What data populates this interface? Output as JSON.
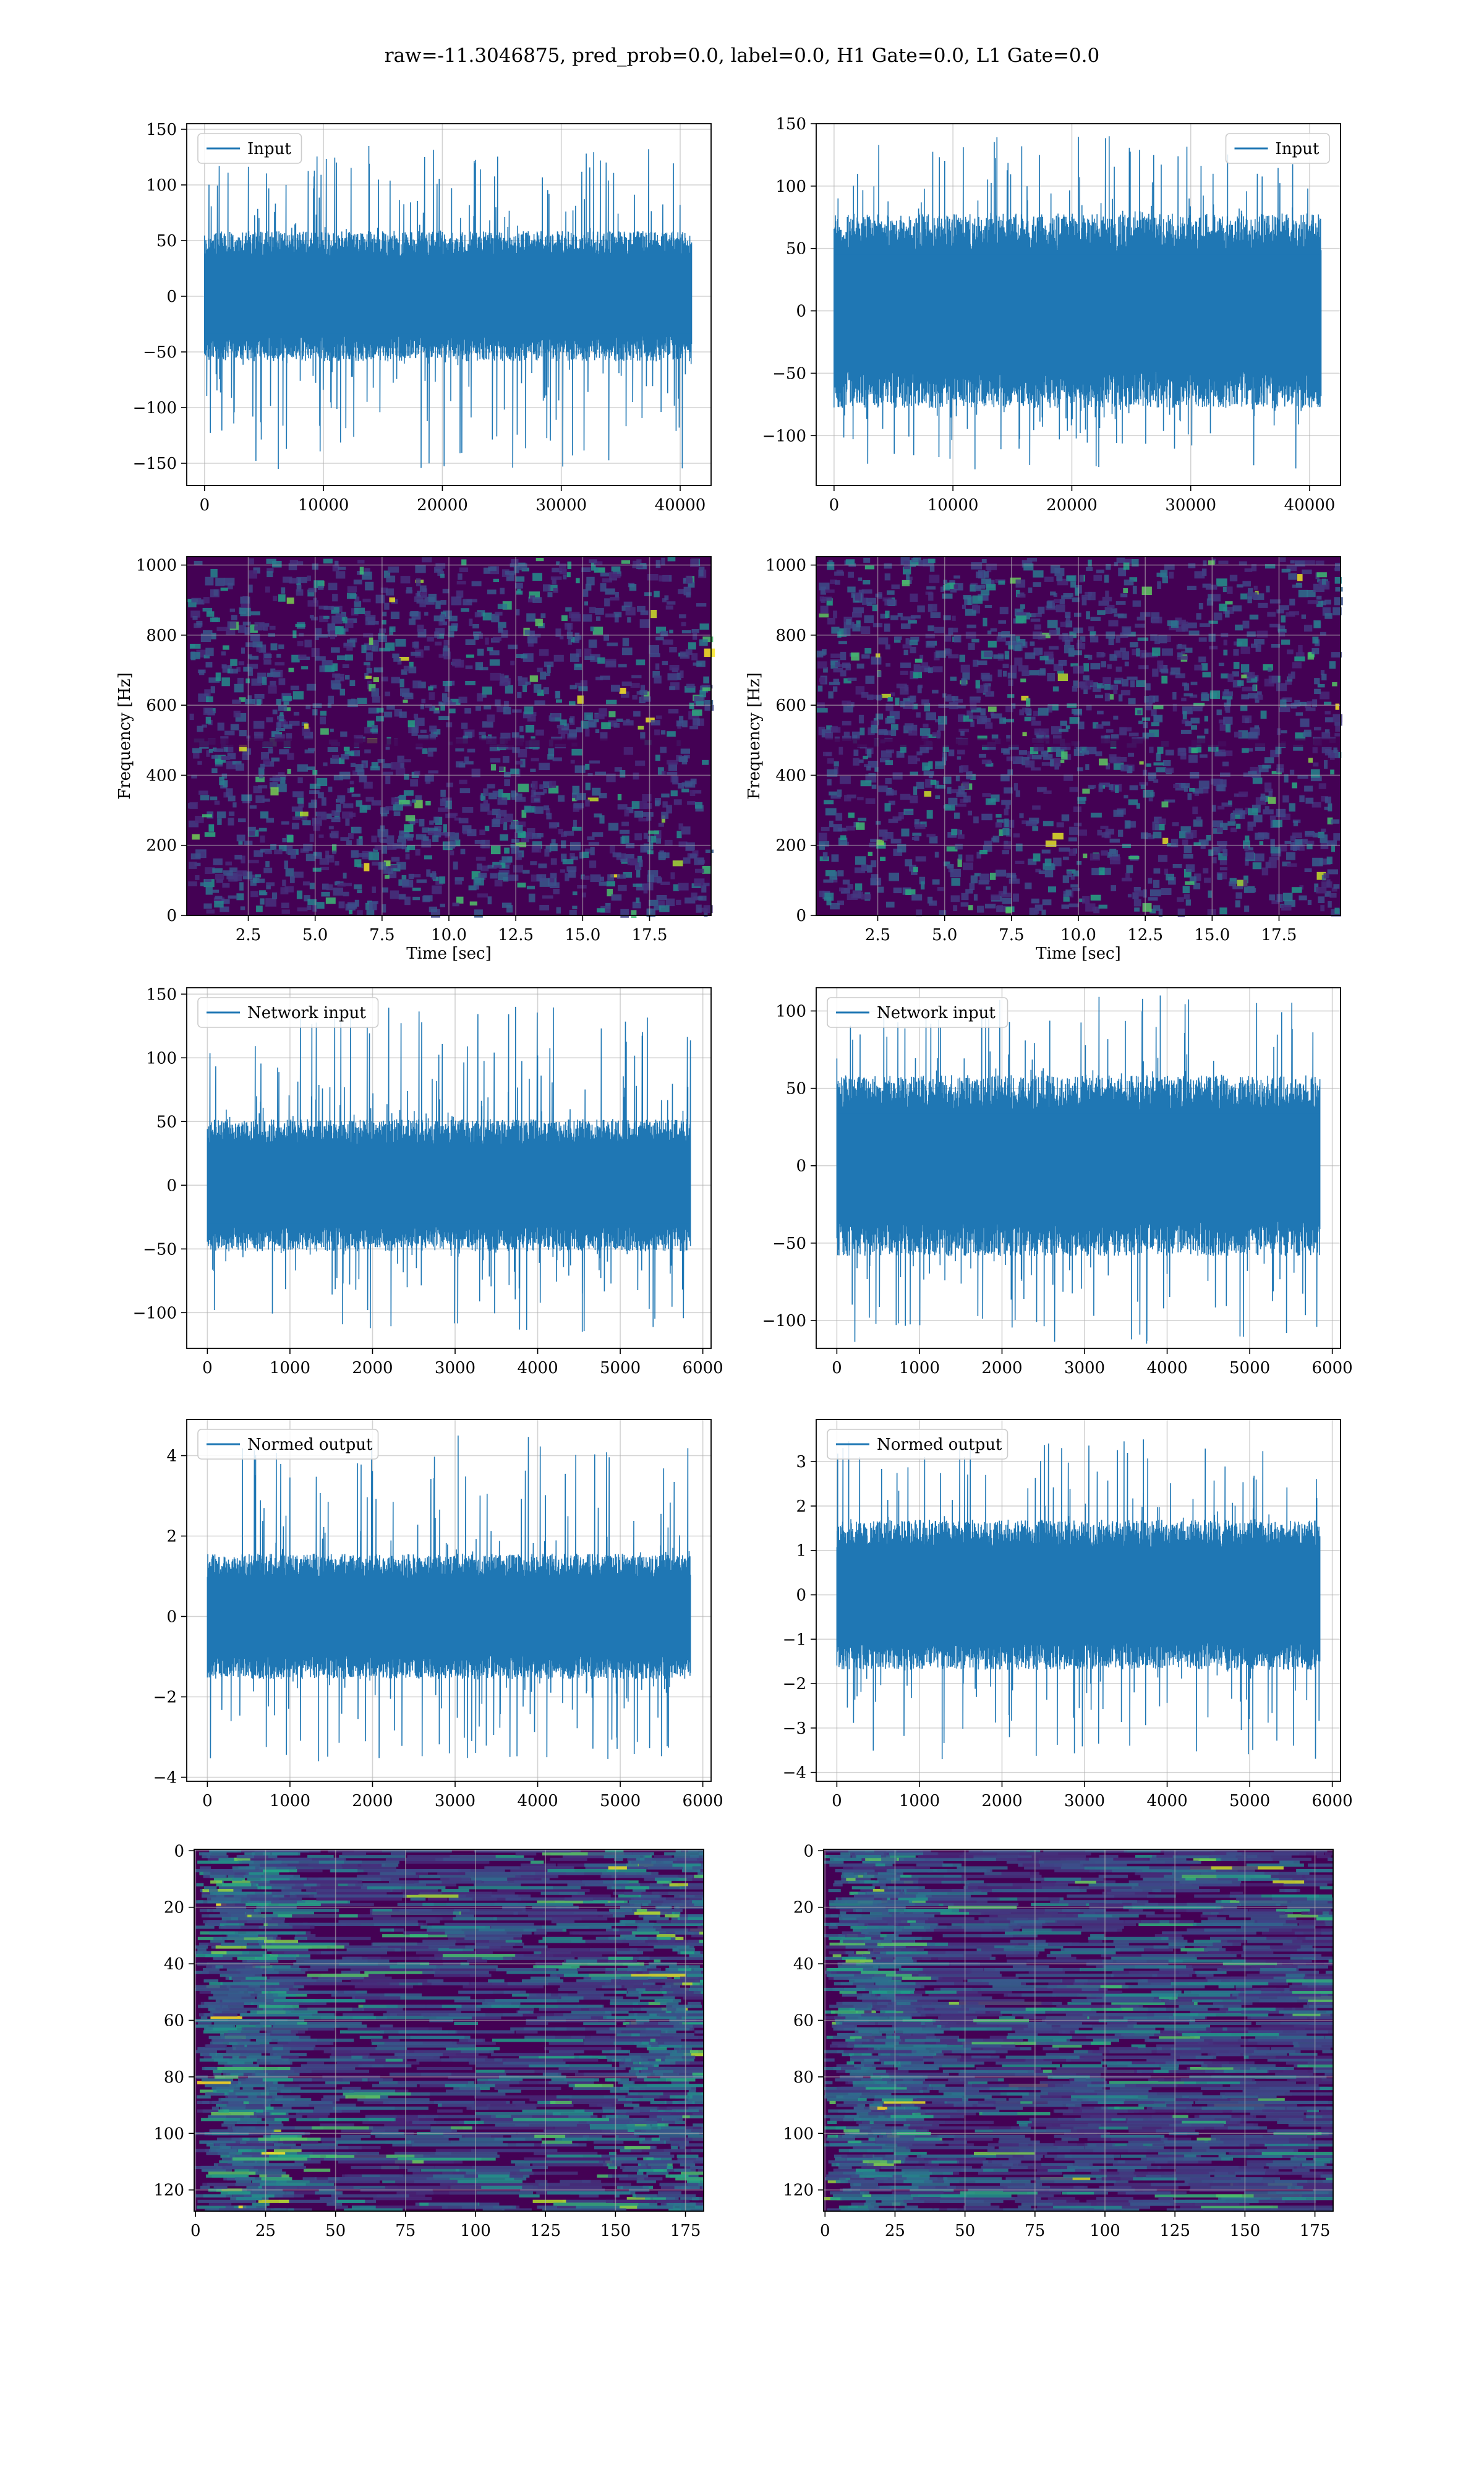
{
  "figure": {
    "suptitle": "raw=-11.3046875, pred_prob=0.0, label=0.0, H1 Gate=0.0, L1 Gate=0.0"
  },
  "colors": {
    "line": "#1f77b4",
    "grid": "#b0b0b0",
    "viridis_dark": "#440154",
    "viridis_mid": "#3b528b",
    "viridis_teal": "#21918c",
    "viridis_green": "#5ec962",
    "viridis_yellow": "#fde725"
  },
  "chart_data": [
    {
      "id": "input-h1",
      "type": "line",
      "legend": {
        "label": "Input",
        "loc": "upper left"
      },
      "x": {
        "lim": [
          -1500,
          42600
        ],
        "ticks": [
          0,
          10000,
          20000,
          30000,
          40000
        ],
        "tick_labels": [
          "0",
          "10000",
          "20000",
          "30000",
          "40000"
        ],
        "label": ""
      },
      "y": {
        "lim": [
          -170,
          155
        ],
        "ticks": [
          -150,
          -100,
          -50,
          0,
          50,
          100,
          150
        ],
        "tick_labels": [
          "−150",
          "−100",
          "−50",
          "0",
          "50",
          "100",
          "150"
        ],
        "label": ""
      },
      "series": {
        "x_range": [
          0,
          40960
        ],
        "core": 45,
        "peak_top": 135,
        "peak_bottom": -155
      },
      "grid": true
    },
    {
      "id": "input-l1",
      "type": "line",
      "legend": {
        "label": "Input",
        "loc": "upper right"
      },
      "x": {
        "lim": [
          -1500,
          42600
        ],
        "ticks": [
          0,
          10000,
          20000,
          30000,
          40000
        ],
        "tick_labels": [
          "0",
          "10000",
          "20000",
          "30000",
          "40000"
        ],
        "label": ""
      },
      "y": {
        "lim": [
          -140,
          150
        ],
        "ticks": [
          -100,
          -50,
          0,
          50,
          100,
          150
        ],
        "tick_labels": [
          "−100",
          "−50",
          "0",
          "50",
          "100",
          "150"
        ],
        "label": ""
      },
      "series": {
        "x_range": [
          0,
          40960
        ],
        "core": 60,
        "peak_top": 140,
        "peak_bottom": -127
      },
      "grid": true
    },
    {
      "id": "spec-h1",
      "type": "heatmap",
      "x": {
        "lim": [
          0.2,
          19.8
        ],
        "ticks": [
          2.5,
          5.0,
          7.5,
          10.0,
          12.5,
          15.0,
          17.5
        ],
        "tick_labels": [
          "2.5",
          "5.0",
          "7.5",
          "10.0",
          "12.5",
          "15.0",
          "17.5"
        ],
        "label": "Time [sec]"
      },
      "y": {
        "lim": [
          0,
          1024
        ],
        "ticks": [
          0,
          200,
          400,
          600,
          800,
          1000
        ],
        "tick_labels": [
          "0",
          "200",
          "400",
          "600",
          "800",
          "1000"
        ],
        "label": "Frequency [Hz]"
      },
      "grid": true,
      "colormap": "viridis"
    },
    {
      "id": "spec-l1",
      "type": "heatmap",
      "x": {
        "lim": [
          0.2,
          19.8
        ],
        "ticks": [
          2.5,
          5.0,
          7.5,
          10.0,
          12.5,
          15.0,
          17.5
        ],
        "tick_labels": [
          "2.5",
          "5.0",
          "7.5",
          "10.0",
          "12.5",
          "15.0",
          "17.5"
        ],
        "label": "Time [sec]"
      },
      "y": {
        "lim": [
          0,
          1024
        ],
        "ticks": [
          0,
          200,
          400,
          600,
          800,
          1000
        ],
        "tick_labels": [
          "0",
          "200",
          "400",
          "600",
          "800",
          "1000"
        ],
        "label": "Frequency [Hz]"
      },
      "grid": true,
      "colormap": "viridis"
    },
    {
      "id": "netin-h1",
      "type": "line",
      "legend": {
        "label": "Network input",
        "loc": "upper left"
      },
      "x": {
        "lim": [
          -250,
          6100
        ],
        "ticks": [
          0,
          1000,
          2000,
          3000,
          4000,
          5000,
          6000
        ],
        "tick_labels": [
          "0",
          "1000",
          "2000",
          "3000",
          "4000",
          "5000",
          "6000"
        ],
        "label": ""
      },
      "y": {
        "lim": [
          -128,
          155
        ],
        "ticks": [
          -100,
          -50,
          0,
          50,
          100,
          150
        ],
        "tick_labels": [
          "−100",
          "−50",
          "0",
          "50",
          "100",
          "150"
        ],
        "label": ""
      },
      "series": {
        "x_range": [
          0,
          5850
        ],
        "core": 40,
        "peak_top": 140,
        "peak_bottom": -115
      },
      "grid": true
    },
    {
      "id": "netin-l1",
      "type": "line",
      "legend": {
        "label": "Network input",
        "loc": "upper left"
      },
      "x": {
        "lim": [
          -250,
          6100
        ],
        "ticks": [
          0,
          1000,
          2000,
          3000,
          4000,
          5000,
          6000
        ],
        "tick_labels": [
          "0",
          "1000",
          "2000",
          "3000",
          "4000",
          "5000",
          "6000"
        ],
        "label": ""
      },
      "y": {
        "lim": [
          -118,
          115
        ],
        "ticks": [
          -100,
          -50,
          0,
          50,
          100
        ],
        "tick_labels": [
          "−100",
          "−50",
          "0",
          "50",
          "100"
        ],
        "label": ""
      },
      "series": {
        "x_range": [
          0,
          5850
        ],
        "core": 45,
        "peak_top": 110,
        "peak_bottom": -115
      },
      "grid": true
    },
    {
      "id": "normed-h1",
      "type": "line",
      "legend": {
        "label": "Normed output",
        "loc": "upper left"
      },
      "x": {
        "lim": [
          -250,
          6100
        ],
        "ticks": [
          0,
          1000,
          2000,
          3000,
          4000,
          5000,
          6000
        ],
        "tick_labels": [
          "0",
          "1000",
          "2000",
          "3000",
          "4000",
          "5000",
          "6000"
        ],
        "label": ""
      },
      "y": {
        "lim": [
          -4.1,
          4.9
        ],
        "ticks": [
          -4,
          -2,
          0,
          2,
          4
        ],
        "tick_labels": [
          "−4",
          "−2",
          "0",
          "2",
          "4"
        ],
        "label": ""
      },
      "series": {
        "x_range": [
          0,
          5850
        ],
        "core": 1.2,
        "peak_top": 4.5,
        "peak_bottom": -3.6
      },
      "grid": true
    },
    {
      "id": "normed-l1",
      "type": "line",
      "legend": {
        "label": "Normed output",
        "loc": "upper left"
      },
      "x": {
        "lim": [
          -250,
          6100
        ],
        "ticks": [
          0,
          1000,
          2000,
          3000,
          4000,
          5000,
          6000
        ],
        "tick_labels": [
          "0",
          "1000",
          "2000",
          "3000",
          "4000",
          "5000",
          "6000"
        ],
        "label": ""
      },
      "y": {
        "lim": [
          -4.2,
          3.95
        ],
        "ticks": [
          -4,
          -3,
          -2,
          -1,
          0,
          1,
          2,
          3
        ],
        "tick_labels": [
          "−4",
          "−3",
          "−2",
          "−1",
          "0",
          "1",
          "2",
          "3"
        ],
        "label": ""
      },
      "series": {
        "x_range": [
          0,
          5850
        ],
        "core": 1.3,
        "peak_top": 3.5,
        "peak_bottom": -3.7
      },
      "grid": true
    },
    {
      "id": "feat-h1",
      "type": "heatmap",
      "x": {
        "lim": [
          -0.5,
          181.5
        ],
        "ticks": [
          0,
          25,
          50,
          75,
          100,
          125,
          150,
          175
        ],
        "tick_labels": [
          "0",
          "25",
          "50",
          "75",
          "100",
          "125",
          "150",
          "175"
        ],
        "label": ""
      },
      "y": {
        "lim": [
          127.5,
          -0.5
        ],
        "inverted": true,
        "ticks": [
          0,
          20,
          40,
          60,
          80,
          100,
          120
        ],
        "tick_labels": [
          "0",
          "20",
          "40",
          "60",
          "80",
          "100",
          "120"
        ],
        "label": ""
      },
      "grid": true,
      "colormap": "viridis"
    },
    {
      "id": "feat-l1",
      "type": "heatmap",
      "x": {
        "lim": [
          -0.5,
          181.5
        ],
        "ticks": [
          0,
          25,
          50,
          75,
          100,
          125,
          150,
          175
        ],
        "tick_labels": [
          "0",
          "25",
          "50",
          "75",
          "100",
          "125",
          "150",
          "175"
        ],
        "label": ""
      },
      "y": {
        "lim": [
          127.5,
          -0.5
        ],
        "inverted": true,
        "ticks": [
          0,
          20,
          40,
          60,
          80,
          100,
          120
        ],
        "tick_labels": [
          "0",
          "20",
          "40",
          "60",
          "80",
          "100",
          "120"
        ],
        "label": ""
      },
      "grid": true,
      "colormap": "viridis"
    }
  ]
}
